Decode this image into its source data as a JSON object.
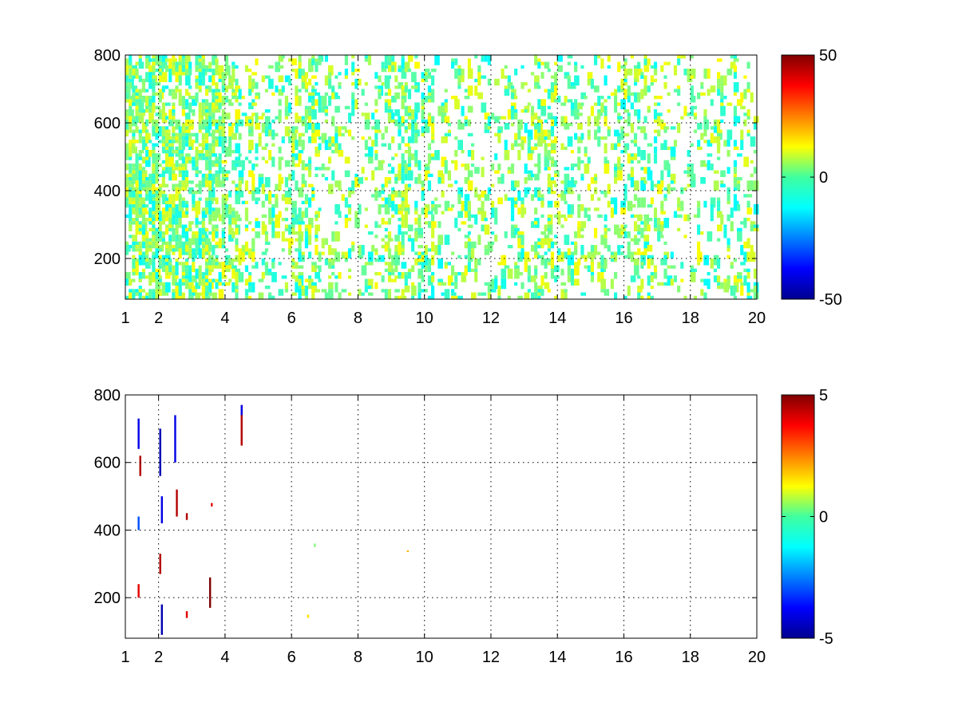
{
  "chart_data": [
    {
      "type": "heatmap",
      "title": "",
      "xlabel": "",
      "ylabel": "",
      "xlim": [
        1,
        20
      ],
      "ylim": [
        80,
        800
      ],
      "xticks": [
        1,
        2,
        4,
        6,
        8,
        10,
        12,
        14,
        16,
        18,
        20
      ],
      "xtick_labels": [
        "1",
        "2",
        "4",
        "6",
        "8",
        "10",
        "12",
        "14",
        "16",
        "18",
        "20"
      ],
      "yticks": [
        200,
        400,
        600,
        800
      ],
      "ytick_labels": [
        "200",
        "400",
        "600",
        "800"
      ],
      "grid": true,
      "colormap": "jet",
      "clim": [
        -50,
        50
      ],
      "colorbar": {
        "placement": "right",
        "ticks": [
          -50,
          0,
          50
        ],
        "tick_labels": [
          "-50",
          "0",
          "50"
        ]
      },
      "description_level": "sparse field of small values mostly near 0 (range about -15 to +15), dense vertical streaks at x≈1.5–4, scattered cells elsewhere; NaN shown white",
      "column_density": [
        {
          "x": 1.3,
          "density": 0.9
        },
        {
          "x": 1.6,
          "density": 0.9
        },
        {
          "x": 2.0,
          "density": 0.85
        },
        {
          "x": 2.5,
          "density": 0.8
        },
        {
          "x": 3.0,
          "density": 0.75
        },
        {
          "x": 3.5,
          "density": 0.8
        },
        {
          "x": 4.0,
          "density": 0.55
        },
        {
          "x": 5.0,
          "density": 0.35
        },
        {
          "x": 6.5,
          "density": 0.55
        },
        {
          "x": 7.0,
          "density": 0.3
        },
        {
          "x": 8.0,
          "density": 0.25
        },
        {
          "x": 9.0,
          "density": 0.45
        },
        {
          "x": 9.5,
          "density": 0.5
        },
        {
          "x": 11.0,
          "density": 0.3
        },
        {
          "x": 13.0,
          "density": 0.35
        },
        {
          "x": 14.0,
          "density": 0.4
        },
        {
          "x": 15.0,
          "density": 0.35
        },
        {
          "x": 16.5,
          "density": 0.4
        },
        {
          "x": 18.0,
          "density": 0.25
        },
        {
          "x": 19.5,
          "density": 0.35
        }
      ]
    },
    {
      "type": "heatmap",
      "title": "",
      "xlabel": "",
      "ylabel": "",
      "xlim": [
        1,
        20
      ],
      "ylim": [
        80,
        800
      ],
      "xticks": [
        1,
        2,
        4,
        6,
        8,
        10,
        12,
        14,
        16,
        18,
        20
      ],
      "xtick_labels": [
        "1",
        "2",
        "4",
        "6",
        "8",
        "10",
        "12",
        "14",
        "16",
        "18",
        "20"
      ],
      "yticks": [
        200,
        400,
        600,
        800
      ],
      "ytick_labels": [
        "200",
        "400",
        "600",
        "800"
      ],
      "grid": true,
      "colormap": "jet",
      "clim": [
        -5,
        5
      ],
      "colorbar": {
        "placement": "right",
        "ticks": [
          -5,
          0,
          5
        ],
        "tick_labels": [
          "-5",
          "0",
          "5"
        ]
      },
      "marks": [
        {
          "x": 1.4,
          "y0": 640,
          "y1": 730,
          "value": -4
        },
        {
          "x": 1.45,
          "y0": 560,
          "y1": 620,
          "value": 4.5
        },
        {
          "x": 1.4,
          "y0": 400,
          "y1": 440,
          "value": -3
        },
        {
          "x": 1.4,
          "y0": 200,
          "y1": 240,
          "value": 4
        },
        {
          "x": 2.05,
          "y0": 560,
          "y1": 700,
          "value": -4.5
        },
        {
          "x": 2.1,
          "y0": 420,
          "y1": 500,
          "value": -4
        },
        {
          "x": 2.05,
          "y0": 270,
          "y1": 330,
          "value": 4.5
        },
        {
          "x": 2.1,
          "y0": 90,
          "y1": 180,
          "value": -4.5
        },
        {
          "x": 2.5,
          "y0": 600,
          "y1": 740,
          "value": -4
        },
        {
          "x": 2.55,
          "y0": 440,
          "y1": 520,
          "value": 4.5
        },
        {
          "x": 2.85,
          "y0": 430,
          "y1": 450,
          "value": 4.5
        },
        {
          "x": 2.85,
          "y0": 140,
          "y1": 160,
          "value": 4
        },
        {
          "x": 3.55,
          "y0": 170,
          "y1": 260,
          "value": 5
        },
        {
          "x": 3.6,
          "y0": 470,
          "y1": 480,
          "value": 4
        },
        {
          "x": 4.5,
          "y0": 650,
          "y1": 770,
          "value": 4.5
        },
        {
          "x": 4.5,
          "y0": 740,
          "y1": 770,
          "value": -4
        },
        {
          "x": 6.7,
          "y0": 350,
          "y1": 360,
          "value": 0
        },
        {
          "x": 6.5,
          "y0": 140,
          "y1": 150,
          "value": 1.5
        },
        {
          "x": 9.5,
          "y0": 335,
          "y1": 340,
          "value": 2
        }
      ]
    }
  ]
}
